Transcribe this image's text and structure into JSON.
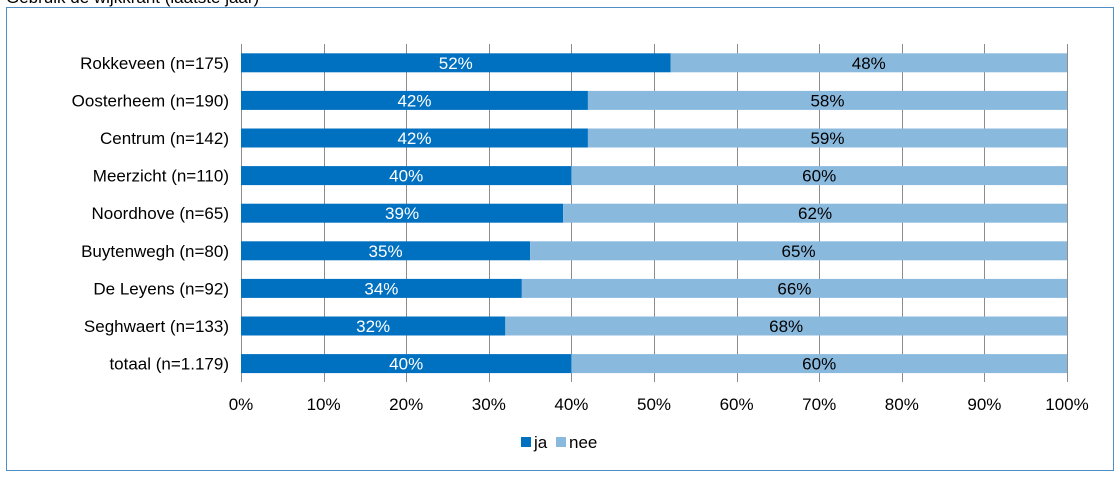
{
  "header_text": "Gebruik de wijkkrant (laatste jaar)",
  "colors": {
    "ja": "#0070c0",
    "nee": "#8ab9de",
    "grid": "#8c8c8c",
    "frame": "#4f8fc6"
  },
  "chart_data": {
    "type": "bar",
    "orientation": "horizontal",
    "stacked": "percent",
    "categories": [
      "Rokkeveen (n=175)",
      "Oosterheem (n=190)",
      "Centrum (n=142)",
      "Meerzicht (n=110)",
      "Noordhove (n=65)",
      "Buytenwegh (n=80)",
      "De Leyens (n=92)",
      "Seghwaert (n=133)",
      "totaal (n=1.179)"
    ],
    "series": [
      {
        "name": "ja",
        "values": [
          52,
          42,
          42,
          40,
          39,
          35,
          34,
          32,
          40
        ],
        "labels": [
          "52%",
          "42%",
          "42%",
          "40%",
          "39%",
          "35%",
          "34%",
          "32%",
          "40%"
        ],
        "color": "#0070c0"
      },
      {
        "name": "nee",
        "values": [
          48,
          58,
          59,
          60,
          62,
          65,
          66,
          68,
          60
        ],
        "labels": [
          "48%",
          "58%",
          "59%",
          "60%",
          "62%",
          "65%",
          "66%",
          "68%",
          "60%"
        ],
        "color": "#8ab9de"
      }
    ],
    "xlim": [
      0,
      100
    ],
    "xticks": [
      "0%",
      "10%",
      "20%",
      "30%",
      "40%",
      "50%",
      "60%",
      "70%",
      "80%",
      "90%",
      "100%"
    ],
    "grid": true,
    "legend_position": "bottom",
    "title": "",
    "xlabel": "",
    "ylabel": ""
  }
}
